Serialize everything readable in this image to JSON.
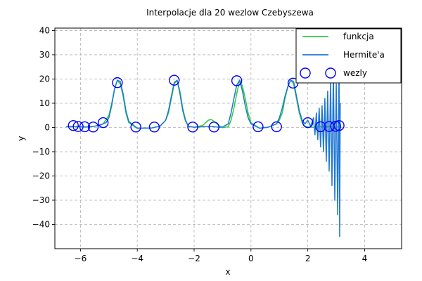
{
  "chart_data": {
    "type": "line",
    "title": "Interpolacje dla 20 wezlow Czebyszewa",
    "xlabel": "x",
    "ylabel": "y",
    "xlim": [
      -6.9,
      5.3
    ],
    "ylim": [
      -50,
      41
    ],
    "xticks": [
      -6,
      -4,
      -2,
      0,
      2,
      4
    ],
    "xtick_labels": [
      "−6",
      "−4",
      "−2",
      "0",
      "2",
      "4"
    ],
    "yticks": [
      -40,
      -30,
      -20,
      -10,
      0,
      10,
      20,
      30,
      40
    ],
    "ytick_labels": [
      "−40",
      "−30",
      "−20",
      "−10",
      "0",
      "10",
      "20",
      "30",
      "40"
    ],
    "grid": true,
    "legend_position": "top-right",
    "series": [
      {
        "name": "funkcja",
        "color": "#2ecc40",
        "kind": "line",
        "x": [
          -6.5,
          -6.2,
          -6.0,
          -5.8,
          -5.5,
          -5.2,
          -5.0,
          -4.9,
          -4.8,
          -4.7,
          -4.6,
          -4.5,
          -4.4,
          -4.3,
          -4.0,
          -3.5,
          -3.2,
          -3.0,
          -2.9,
          -2.8,
          -2.7,
          -2.6,
          -2.5,
          -2.4,
          -2.3,
          -2.2,
          -2.0,
          -1.7,
          -1.5,
          -1.4,
          -1.3,
          -1.1,
          -1.0,
          -0.8,
          -0.7,
          -0.6,
          -0.5,
          -0.4,
          -0.3,
          -0.2,
          -0.1,
          0.0,
          0.3,
          0.6,
          0.9,
          1.0,
          1.1,
          1.2,
          1.3,
          1.4,
          1.5,
          1.6,
          1.7,
          1.8,
          1.9,
          2.0,
          2.2,
          2.5,
          2.8,
          3.14
        ],
        "y": [
          0.3,
          0.5,
          0.3,
          0.2,
          0.5,
          1.5,
          5,
          10,
          16,
          19.5,
          18,
          13,
          6,
          2,
          -0.3,
          -0.2,
          0.5,
          3,
          6,
          12,
          18,
          19.5,
          15,
          8,
          3,
          0.5,
          0.1,
          0.8,
          3,
          3.3,
          2.5,
          0.5,
          -0.1,
          0.3,
          3,
          8,
          14,
          19.5,
          17,
          12,
          6,
          2,
          -0.3,
          0.1,
          1.5,
          3,
          6,
          12,
          17,
          19.5,
          18,
          12,
          6,
          2,
          0.5,
          0.1,
          0.1,
          0.4,
          0.3,
          0.5
        ]
      },
      {
        "name": "Hermite'a",
        "color": "#1f77d4",
        "kind": "line",
        "x": [
          -6.5,
          -6.2,
          -6.0,
          -5.8,
          -5.5,
          -5.3,
          -5.1,
          -5.0,
          -4.9,
          -4.8,
          -4.7,
          -4.6,
          -4.5,
          -4.4,
          -4.3,
          -4.0,
          -3.5,
          -3.2,
          -3.0,
          -2.9,
          -2.8,
          -2.7,
          -2.6,
          -2.5,
          -2.4,
          -2.3,
          -2.2,
          -2.0,
          -1.7,
          -1.5,
          -1.3,
          -1.1,
          -1.0,
          -0.8,
          -0.7,
          -0.6,
          -0.5,
          -0.4,
          -0.3,
          -0.2,
          -0.1,
          0.0,
          0.3,
          0.6,
          0.9,
          1.0,
          1.1,
          1.2,
          1.3,
          1.4,
          1.5,
          1.6,
          1.7,
          1.8,
          1.9,
          2.0,
          2.1,
          2.2,
          2.25,
          2.3,
          2.35,
          2.4,
          2.45,
          2.5,
          2.55,
          2.6,
          2.65,
          2.7,
          2.75,
          2.8,
          2.85,
          2.9,
          2.95,
          3.0,
          3.05,
          3.1,
          3.12,
          3.14
        ],
        "y": [
          0.3,
          0.5,
          0.3,
          0.2,
          0.5,
          1.0,
          2.0,
          4,
          9,
          16,
          19.5,
          19,
          14,
          7,
          2.5,
          -0.3,
          -0.2,
          0.5,
          3,
          7,
          13,
          18.5,
          19.5,
          14,
          7,
          2.5,
          0.5,
          0.1,
          0.3,
          0.5,
          0.3,
          0.1,
          0.2,
          1.5,
          6,
          12,
          17.5,
          19.5,
          15,
          9,
          4,
          1.5,
          -0.3,
          0.1,
          1.5,
          4,
          8,
          13,
          17,
          19.5,
          19,
          13,
          7,
          3,
          1.5,
          3,
          0.5,
          4,
          -3,
          6,
          -5,
          8,
          -8,
          9,
          -10,
          12,
          -14,
          15,
          -18,
          19,
          -24,
          24,
          -30,
          18,
          -36,
          25,
          -45,
          10
        ]
      },
      {
        "name": "wezly",
        "color": "#0000ff",
        "kind": "scatter",
        "marker": "open-circle",
        "x": [
          -6.25,
          -6.08,
          -5.85,
          -5.55,
          -5.2,
          -4.7,
          -4.05,
          -3.4,
          -2.7,
          -2.05,
          -1.3,
          -0.5,
          0.25,
          0.9,
          1.48,
          2.0,
          2.45,
          2.75,
          2.98,
          3.1
        ],
        "y": [
          0.8,
          0.4,
          0.3,
          0.2,
          2.0,
          18.5,
          0.2,
          0.2,
          19.5,
          0.2,
          0.2,
          19.3,
          0.3,
          0.3,
          18.3,
          2.0,
          0.3,
          0.4,
          0.5,
          0.8
        ]
      }
    ]
  }
}
